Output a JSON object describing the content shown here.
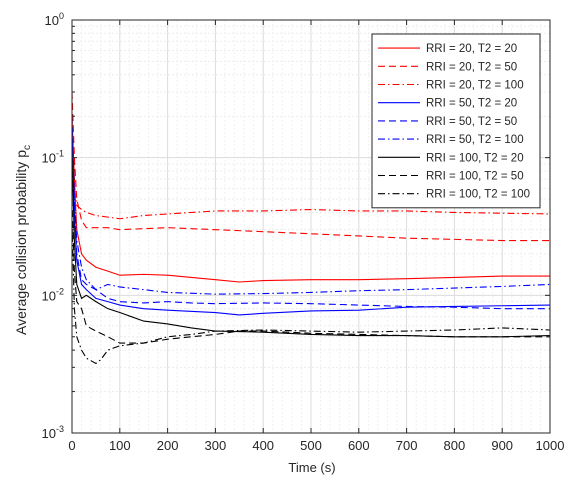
{
  "chart_data": {
    "type": "line",
    "title": "",
    "xlabel": "Time (s)",
    "ylabel": "Average collision probability p",
    "ylabel_subscript": "c",
    "xlim": [
      0,
      1000
    ],
    "ylim": [
      0.001,
      1
    ],
    "yscale": "log",
    "grid": true,
    "minor_grid": true,
    "legend_position": "top-right",
    "x_ticks": [
      0,
      100,
      200,
      300,
      400,
      500,
      600,
      700,
      800,
      900,
      1000
    ],
    "y_ticks": [
      {
        "value": 0.001,
        "base": "10",
        "exp": "-3"
      },
      {
        "value": 0.01,
        "base": "10",
        "exp": "-2"
      },
      {
        "value": 0.1,
        "base": "10",
        "exp": "-1"
      },
      {
        "value": 1,
        "base": "10",
        "exp": "0"
      }
    ],
    "series": [
      {
        "name": "RRI = 20, T2 = 20",
        "color": "#ff0000",
        "dash": "solid",
        "x": [
          0,
          5,
          10,
          20,
          30,
          50,
          75,
          100,
          150,
          200,
          250,
          300,
          350,
          400,
          500,
          600,
          700,
          800,
          900,
          1000
        ],
        "y": [
          0.2,
          0.07,
          0.03,
          0.02,
          0.018,
          0.016,
          0.015,
          0.014,
          0.0142,
          0.014,
          0.0135,
          0.013,
          0.0125,
          0.0128,
          0.013,
          0.013,
          0.0132,
          0.0135,
          0.0138,
          0.0138
        ]
      },
      {
        "name": "RRI = 20, T2 = 50",
        "color": "#ff0000",
        "dash": "dash",
        "x": [
          0,
          5,
          10,
          20,
          30,
          50,
          75,
          100,
          150,
          200,
          250,
          300,
          400,
          500,
          600,
          700,
          800,
          900,
          1000
        ],
        "y": [
          0.3,
          0.1,
          0.05,
          0.035,
          0.031,
          0.031,
          0.031,
          0.03,
          0.0305,
          0.031,
          0.0305,
          0.03,
          0.029,
          0.028,
          0.027,
          0.026,
          0.0255,
          0.025,
          0.025
        ]
      },
      {
        "name": "RRI = 20, T2 = 100",
        "color": "#ff0000",
        "dash": "dashdot",
        "x": [
          0,
          5,
          10,
          20,
          30,
          50,
          75,
          100,
          150,
          200,
          250,
          300,
          400,
          500,
          600,
          700,
          800,
          900,
          1000
        ],
        "y": [
          0.12,
          0.06,
          0.045,
          0.042,
          0.04,
          0.038,
          0.037,
          0.036,
          0.038,
          0.039,
          0.04,
          0.041,
          0.041,
          0.042,
          0.041,
          0.041,
          0.04,
          0.0395,
          0.039
        ]
      },
      {
        "name": "RRI = 50, T2 = 20",
        "color": "#0000ff",
        "dash": "solid",
        "x": [
          0,
          5,
          10,
          20,
          30,
          50,
          75,
          100,
          150,
          200,
          300,
          350,
          400,
          500,
          600,
          700,
          800,
          900,
          1000
        ],
        "y": [
          0.15,
          0.04,
          0.018,
          0.012,
          0.011,
          0.0095,
          0.009,
          0.0085,
          0.008,
          0.0078,
          0.0075,
          0.0072,
          0.0074,
          0.0077,
          0.0078,
          0.0082,
          0.0083,
          0.0084,
          0.0085
        ]
      },
      {
        "name": "RRI = 50, T2 = 50",
        "color": "#0000ff",
        "dash": "dash",
        "x": [
          0,
          5,
          10,
          20,
          30,
          50,
          75,
          100,
          150,
          200,
          250,
          300,
          400,
          500,
          600,
          700,
          800,
          900,
          1000
        ],
        "y": [
          0.2,
          0.05,
          0.02,
          0.013,
          0.012,
          0.011,
          0.0095,
          0.009,
          0.0088,
          0.009,
          0.0088,
          0.0087,
          0.0088,
          0.0087,
          0.0085,
          0.0083,
          0.0082,
          0.008,
          0.008
        ]
      },
      {
        "name": "RRI = 50, T2 = 100",
        "color": "#0000ff",
        "dash": "dashdot",
        "x": [
          0,
          5,
          10,
          20,
          30,
          50,
          75,
          100,
          150,
          200,
          300,
          400,
          500,
          600,
          700,
          800,
          900,
          1000
        ],
        "y": [
          0.16,
          0.05,
          0.025,
          0.016,
          0.013,
          0.011,
          0.012,
          0.0115,
          0.011,
          0.0105,
          0.0102,
          0.0103,
          0.0105,
          0.0108,
          0.011,
          0.0113,
          0.0116,
          0.012
        ]
      },
      {
        "name": "RRI = 100, T2 = 20",
        "color": "#000000",
        "dash": "solid",
        "x": [
          0,
          5,
          10,
          20,
          30,
          50,
          75,
          100,
          150,
          200,
          250,
          300,
          400,
          500,
          600,
          700,
          800,
          900,
          1000
        ],
        "y": [
          0.11,
          0.025,
          0.012,
          0.0095,
          0.01,
          0.009,
          0.008,
          0.0075,
          0.0065,
          0.0062,
          0.0058,
          0.0055,
          0.0054,
          0.0052,
          0.0051,
          0.0051,
          0.005,
          0.005,
          0.0051
        ]
      },
      {
        "name": "RRI = 100, T2 = 50",
        "color": "#000000",
        "dash": "dash",
        "x": [
          0,
          5,
          10,
          20,
          30,
          50,
          75,
          100,
          150,
          200,
          250,
          300,
          350,
          400,
          500,
          600,
          700,
          800,
          900,
          1000
        ],
        "y": [
          0.05,
          0.015,
          0.009,
          0.008,
          0.006,
          0.0055,
          0.005,
          0.0045,
          0.0045,
          0.0048,
          0.005,
          0.0052,
          0.0055,
          0.0055,
          0.0053,
          0.0052,
          0.0051,
          0.005,
          0.005,
          0.005
        ]
      },
      {
        "name": "RRI = 100, T2 = 100",
        "color": "#000000",
        "dash": "dashdot",
        "x": [
          0,
          5,
          10,
          20,
          30,
          50,
          60,
          75,
          100,
          150,
          200,
          250,
          300,
          400,
          500,
          600,
          700,
          800,
          900,
          1000
        ],
        "y": [
          0.035,
          0.008,
          0.005,
          0.004,
          0.0035,
          0.0032,
          0.0034,
          0.004,
          0.0043,
          0.0045,
          0.005,
          0.0052,
          0.0055,
          0.0056,
          0.0055,
          0.0054,
          0.0055,
          0.0056,
          0.0058,
          0.0056
        ]
      }
    ]
  }
}
